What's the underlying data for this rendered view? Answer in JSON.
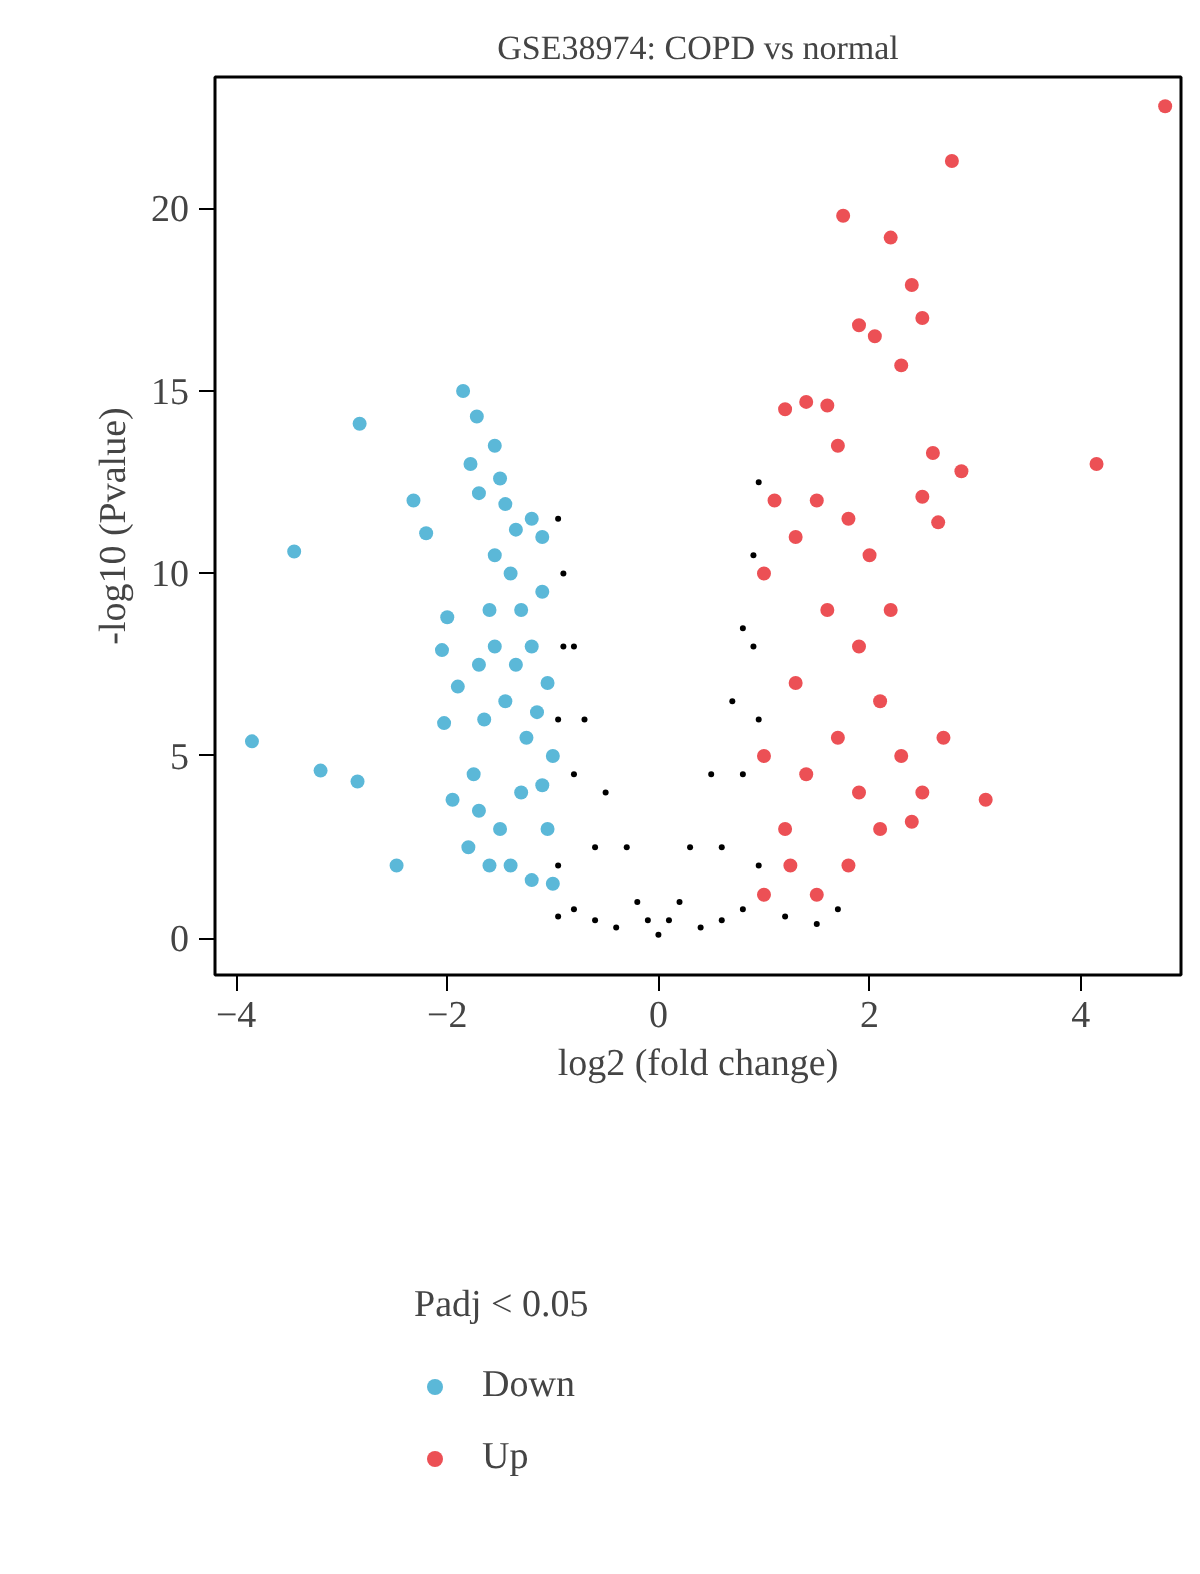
{
  "chart_data": {
    "type": "scatter",
    "title": "GSE38974: COPD vs normal",
    "xlabel": "log2 (fold change)",
    "ylabel": "-log10 (Pvalue)",
    "legend_title": "Padj < 0.05",
    "xlim": [
      -4.2,
      4.95
    ],
    "ylim": [
      -1,
      23.6
    ],
    "xticks": [
      -4,
      -2,
      0,
      2,
      4
    ],
    "yticks": [
      0,
      5,
      10,
      15,
      20
    ],
    "grid": false,
    "legend": "bottom",
    "marker": "circle",
    "series": [
      {
        "color": "#000000",
        "x": [
          0,
          -0.1,
          0.1,
          -0.2,
          0.2,
          -0.3,
          0.3,
          -0.4,
          0.4,
          -0.6,
          0.6,
          -0.5,
          0.5,
          -0.7,
          0.7,
          -0.8,
          0.8,
          -0.9,
          0.9,
          -0.95,
          0.95,
          -0.95,
          0.95,
          -0.95,
          0.95,
          -0.8,
          0.8,
          -0.95,
          1.2,
          1.5,
          1.7,
          -0.6,
          0.6,
          -0.8,
          0.8,
          -0.9,
          0.9
        ],
        "values": [
          0.1,
          0.5,
          0.5,
          1,
          1,
          2.5,
          2.5,
          0.3,
          0.3,
          0.5,
          0.5,
          4,
          4.5,
          6,
          6.5,
          8,
          8.5,
          10,
          10.5,
          11.5,
          12.5,
          6,
          6,
          2,
          2,
          0.8,
          0.8,
          0.6,
          0.6,
          0.4,
          0.8,
          2.5,
          2.5,
          4.5,
          4.5,
          8,
          8
        ]
      },
      {
        "name": "Down",
        "color": "#5bb8d8",
        "x": [
          -3.85,
          -3.45,
          -3.2,
          -2.85,
          -2.83,
          -2.48,
          -2.32,
          -2.2,
          -2.05,
          -2.0,
          -2.03,
          -1.9,
          -1.95,
          -1.85,
          -1.72,
          -1.78,
          -1.7,
          -1.55,
          -1.5,
          -1.45,
          -1.35,
          -1.2,
          -1.1,
          -1.8,
          -1.7,
          -1.75,
          -1.65,
          -1.7,
          -1.6,
          -1.55,
          -1.4,
          -1.3,
          -1.2,
          -1.1,
          -1.05,
          -1.0,
          -1.05,
          -1.0,
          -1.2,
          -1.4,
          -1.5,
          -1.3,
          -1.25,
          -1.45,
          -1.35,
          -1.15,
          -1.1,
          -1.55,
          -1.6
        ],
        "values": [
          5.4,
          10.6,
          4.6,
          4.3,
          14.1,
          2.0,
          12.0,
          11.1,
          7.9,
          8.8,
          5.9,
          6.9,
          3.8,
          15.0,
          14.3,
          13.0,
          12.2,
          13.5,
          12.6,
          11.9,
          11.2,
          11.5,
          11.0,
          2.5,
          3.5,
          4.5,
          6,
          7.5,
          9,
          10.5,
          10,
          9,
          8,
          9.5,
          7,
          5,
          3,
          1.5,
          1.6,
          2,
          3,
          4,
          5.5,
          6.5,
          7.5,
          6.2,
          4.2,
          8,
          2
        ]
      },
      {
        "name": "Up",
        "color": "#ec5055",
        "x": [
          4.8,
          2.78,
          1.75,
          2.2,
          2.4,
          2.5,
          1.9,
          2.05,
          2.3,
          2.6,
          2.87,
          4.15,
          2.5,
          2.65,
          3.1,
          2.7,
          2.5,
          2.4,
          1.0,
          1.0,
          1.0,
          1.1,
          1.2,
          1.4,
          1.6,
          1.7,
          1.5,
          1.3,
          1.8,
          2.0,
          2.2,
          1.9,
          1.6,
          1.3,
          1.2,
          1.4,
          1.7,
          2.1,
          2.3,
          2.1,
          1.8,
          1.5,
          1.25,
          1.9
        ],
        "values": [
          22.8,
          21.3,
          19.8,
          19.2,
          17.9,
          17.0,
          16.8,
          16.5,
          15.7,
          13.3,
          12.8,
          13.0,
          12.1,
          11.4,
          3.8,
          5.5,
          4.0,
          3.2,
          1.2,
          5,
          10,
          12,
          14.5,
          14.7,
          14.6,
          13.5,
          12,
          11,
          11.5,
          10.5,
          9,
          8,
          9,
          7,
          3,
          4.5,
          5.5,
          6.5,
          5,
          3,
          2,
          1.2,
          2,
          4
        ]
      }
    ]
  }
}
